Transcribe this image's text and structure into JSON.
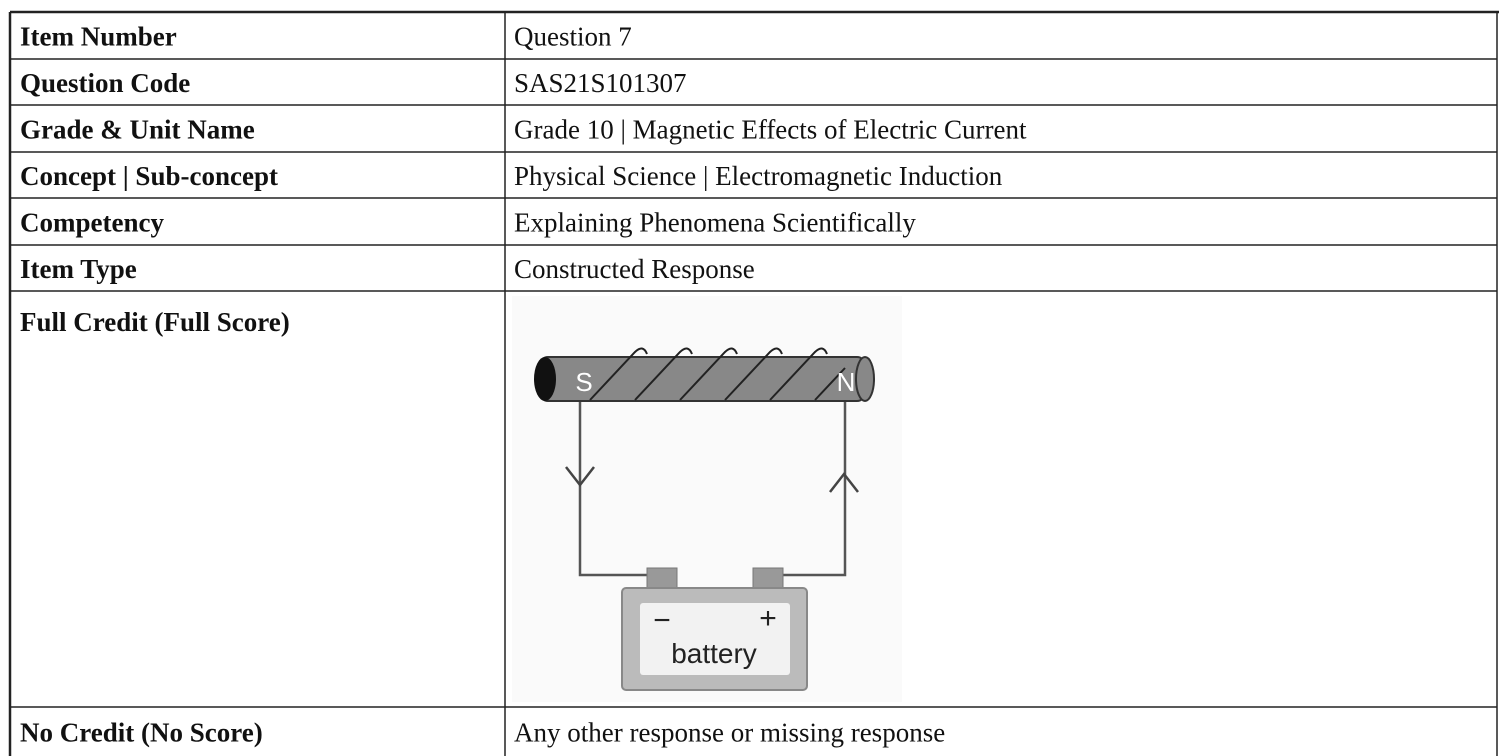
{
  "table": {
    "rows": [
      {
        "label": "Item Number",
        "value": "Question 7"
      },
      {
        "label": "Question Code",
        "value": "SAS21S101307"
      },
      {
        "label": "Grade & Unit Name",
        "value": "Grade 10 | Magnetic Effects of Electric Current"
      },
      {
        "label": "Concept | Sub-concept",
        "value": "Physical Science | Electromagnetic Induction"
      },
      {
        "label": "Competency",
        "value": "Explaining Phenomena Scientifically"
      },
      {
        "label": "Item Type",
        "value": "Constructed Response"
      },
      {
        "label": "Full Credit (Full Score)",
        "figure": {
          "south": "S",
          "north": "N",
          "negative": "−",
          "positive": "+",
          "battery": "battery"
        }
      },
      {
        "label": "No Credit (No Score)",
        "value": "Any other response or missing response"
      }
    ]
  }
}
